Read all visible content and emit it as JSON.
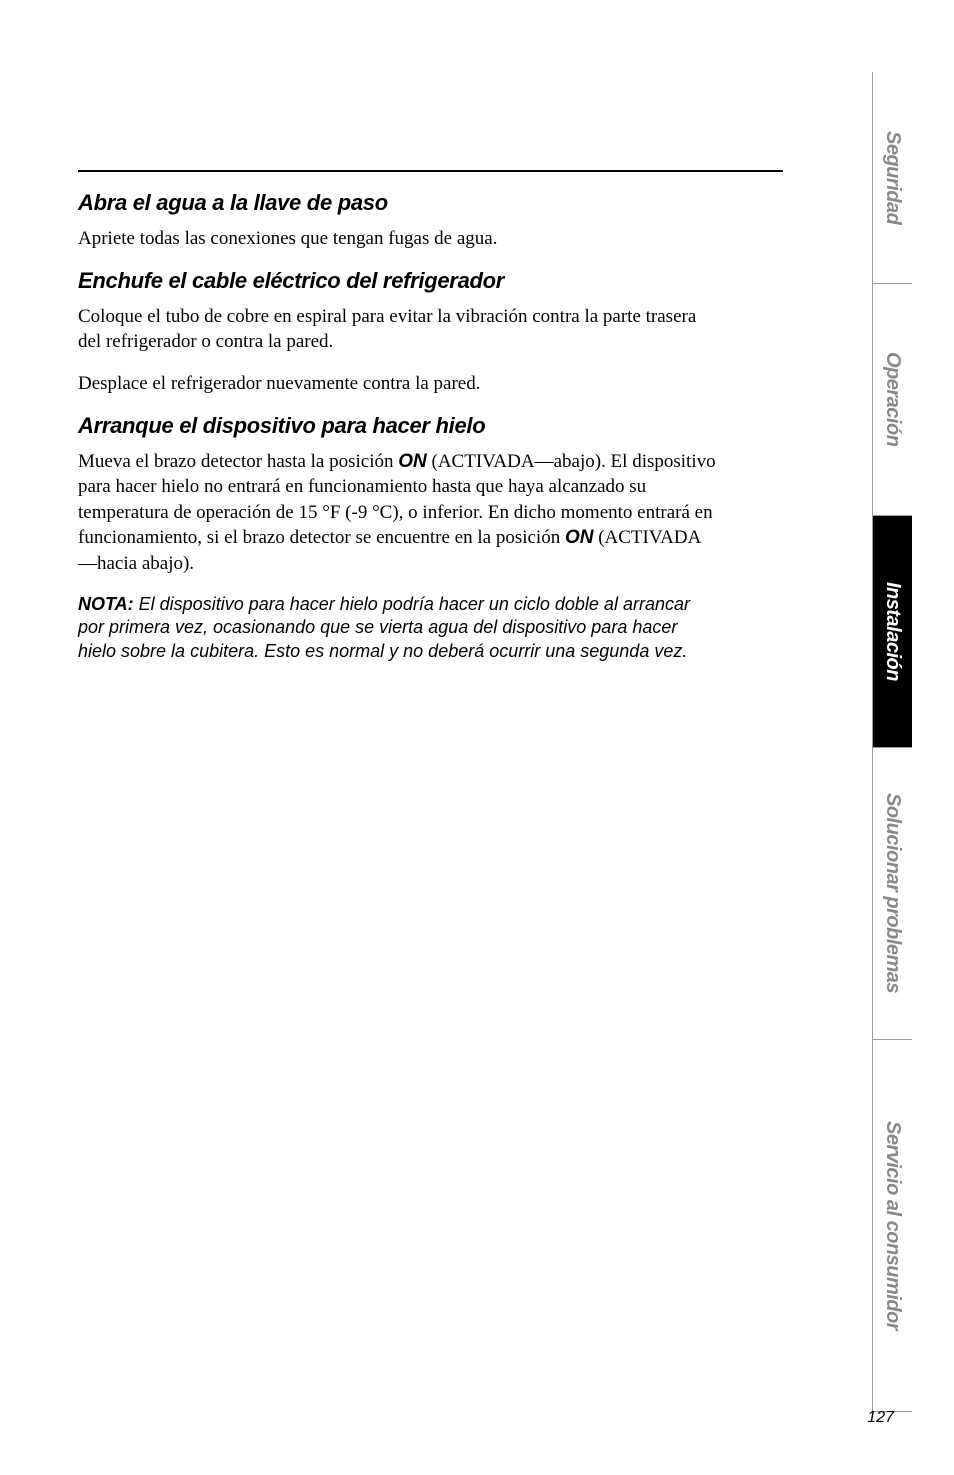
{
  "sections": {
    "s1": {
      "title": "Abra el agua a la llave de paso",
      "p1": "Apriete todas las conexiones que tengan fugas de agua."
    },
    "s2": {
      "title": "Enchufe el cable eléctrico del refrigerador",
      "p1": "Coloque el tubo de cobre en espiral para evitar la vibración contra la parte trasera del refrigerador o contra la pared.",
      "p2": "Desplace el refrigerador nuevamente contra la pared."
    },
    "s3": {
      "title": "Arranque el dispositivo para hacer hielo",
      "p1a": "Mueva el brazo detector hasta la posición ",
      "on1": "ON",
      "p1b": " (ACTIVADA—abajo). El dispositivo para hacer hielo no entrará en funcionamiento hasta que haya alcanzado su temperatura de operación de 15 °F (-9 °C), o inferior. En dicho momento entrará en funcionamiento, si el brazo detector se encuentre en la posición ",
      "on2": "ON",
      "p1c": " (ACTIVADA—hacia abajo).",
      "nota_label": "NOTA:",
      "nota_text": " El dispositivo para hacer hielo podría hacer un ciclo doble al arrancar por primera vez, ocasionando que se vierta agua del dispositivo para hacer hielo sobre la cubitera. Esto es normal y no deberá ocurrir una segunda vez."
    }
  },
  "tabs": {
    "t1": "Seguridad",
    "t2": "Operación",
    "t3": "Instalación",
    "t4": "Solucionar problemas",
    "t5": "Servicio al consumidor"
  },
  "page_number": "127",
  "colors": {
    "text": "#000000",
    "gray_tab": "#888888",
    "active_tab_bg": "#000000",
    "active_tab_text": "#ffffff",
    "background": "#ffffff"
  }
}
